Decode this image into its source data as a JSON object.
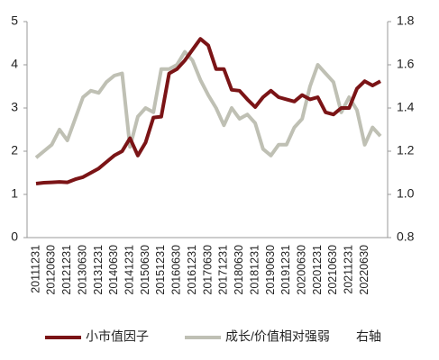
{
  "chart_data": {
    "type": "line",
    "categories": [
      "20111231",
      null,
      "20120630",
      null,
      "20121231",
      null,
      "20130630",
      null,
      "20131231",
      null,
      "20140630",
      null,
      "20141231",
      null,
      "20150630",
      null,
      "20151231",
      null,
      "20160630",
      null,
      "20161231",
      null,
      "20170630",
      null,
      "20171231",
      null,
      "20180630",
      null,
      "20181231",
      null,
      "20190630",
      null,
      "20191231",
      null,
      "20200630",
      null,
      "20201231",
      null,
      "20210630",
      null,
      "20211231",
      null,
      "20220630",
      null,
      null
    ],
    "series": [
      {
        "name": "小市值因子",
        "color": "#7b1416",
        "values": [
          1.25,
          1.27,
          1.28,
          1.29,
          1.28,
          1.35,
          1.4,
          1.5,
          1.6,
          1.75,
          1.9,
          2.0,
          2.3,
          1.9,
          2.2,
          2.78,
          2.8,
          3.8,
          3.9,
          4.1,
          4.35,
          4.6,
          4.45,
          3.9,
          3.9,
          3.42,
          3.4,
          3.2,
          3.02,
          3.25,
          3.4,
          3.25,
          3.2,
          3.15,
          3.3,
          3.2,
          3.25,
          2.9,
          2.85,
          3.0,
          3.0,
          3.45,
          3.62,
          3.52,
          3.62
        ]
      },
      {
        "name": "成长/价值相对强弱",
        "color": "#bfc0b4",
        "axis": "y2",
        "values": [
          1.17,
          1.2,
          1.23,
          1.3,
          1.25,
          1.35,
          1.45,
          1.48,
          1.47,
          1.52,
          1.55,
          1.56,
          1.22,
          1.36,
          1.4,
          1.38,
          1.58,
          1.58,
          1.6,
          1.66,
          1.62,
          1.53,
          1.46,
          1.4,
          1.32,
          1.4,
          1.35,
          1.37,
          1.33,
          1.21,
          1.18,
          1.23,
          1.23,
          1.31,
          1.35,
          1.5,
          1.6,
          1.56,
          1.52,
          1.38,
          1.45,
          1.39,
          1.23,
          1.31,
          1.27
        ]
      }
    ],
    "legend_note": "右轴",
    "ylim": [
      0,
      5
    ],
    "yticks": [
      0,
      1,
      2,
      3,
      4,
      5
    ],
    "y2lim": [
      0.8,
      1.8
    ],
    "y2ticks": [
      {
        "value": 0.8,
        "label": "0.8"
      },
      {
        "value": 1.0,
        "label": "1.0"
      },
      {
        "value": 1.2,
        "label": "1.2"
      },
      {
        "value": 1.4,
        "label": "1.4"
      },
      {
        "value": 1.6,
        "label": "1.6"
      },
      {
        "value": 1.8,
        "label": "1.8"
      }
    ],
    "legend": "bottom"
  }
}
